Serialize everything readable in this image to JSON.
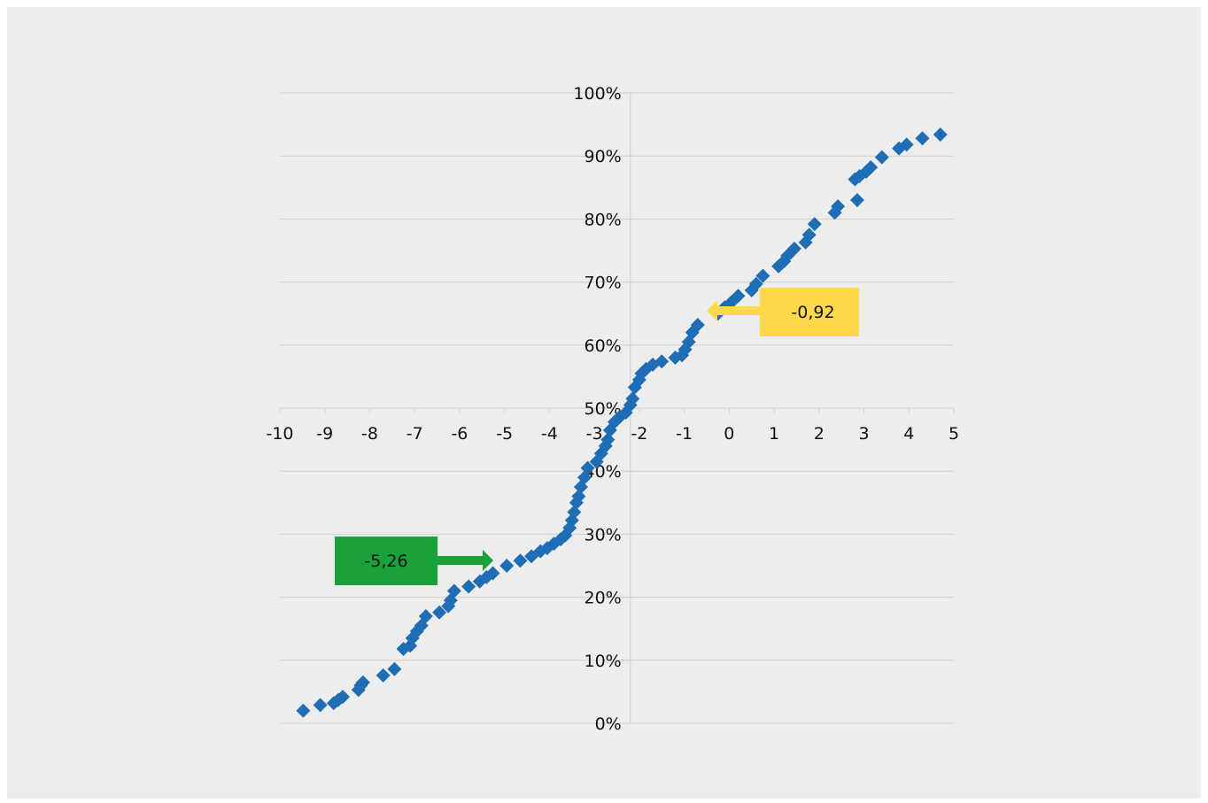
{
  "chart_data": {
    "type": "scatter",
    "title": "",
    "xlabel": "",
    "ylabel": "",
    "xlim": [
      -10,
      5
    ],
    "ylim": [
      0,
      100
    ],
    "x_ticks": [
      "-10",
      "-9",
      "-8",
      "-7",
      "-6",
      "-5",
      "-4",
      "-3",
      "-2",
      "-1",
      "0",
      "1",
      "2",
      "3",
      "4",
      "5"
    ],
    "y_ticks": [
      "0%",
      "10%",
      "20%",
      "30%",
      "40%",
      "50%",
      "60%",
      "70%",
      "80%",
      "90%",
      "100%"
    ],
    "grid": "horizontal",
    "marker": "diamond",
    "colors": {
      "marker": "#1f6db5",
      "panel": "#ededed",
      "grid": "#cfcfcf",
      "callout_green": "#1ba13a",
      "callout_yellow": "#ffd94a"
    },
    "points": [
      [
        -9.48,
        2
      ],
      [
        -9.1,
        2.9
      ],
      [
        -8.8,
        3.2
      ],
      [
        -8.7,
        3.7
      ],
      [
        -8.6,
        4.2
      ],
      [
        -8.25,
        5.3
      ],
      [
        -8.2,
        6
      ],
      [
        -8.15,
        6.5
      ],
      [
        -7.7,
        7.6
      ],
      [
        -7.45,
        8.6
      ],
      [
        -7.25,
        11.8
      ],
      [
        -7.1,
        12.3
      ],
      [
        -7.05,
        13.5
      ],
      [
        -6.95,
        14.6
      ],
      [
        -6.85,
        15.5
      ],
      [
        -6.75,
        17
      ],
      [
        -6.45,
        17.6
      ],
      [
        -6.25,
        18.6
      ],
      [
        -6.2,
        19.5
      ],
      [
        -6.12,
        21
      ],
      [
        -5.8,
        21.7
      ],
      [
        -5.55,
        22.5
      ],
      [
        -5.4,
        23.2
      ],
      [
        -5.26,
        23.8
      ],
      [
        -4.95,
        25
      ],
      [
        -4.65,
        25.8
      ],
      [
        -4.4,
        26.5
      ],
      [
        -4.2,
        27.3
      ],
      [
        -4.05,
        27.8
      ],
      [
        -3.9,
        28.5
      ],
      [
        -3.75,
        29.2
      ],
      [
        -3.65,
        29.8
      ],
      [
        -3.55,
        31
      ],
      [
        -3.5,
        32.2
      ],
      [
        -3.45,
        33.5
      ],
      [
        -3.4,
        35
      ],
      [
        -3.35,
        36
      ],
      [
        -3.3,
        37.5
      ],
      [
        -3.22,
        39
      ],
      [
        -3.15,
        40.5
      ],
      [
        -2.95,
        41.5
      ],
      [
        -2.85,
        42.8
      ],
      [
        -2.75,
        44
      ],
      [
        -2.7,
        45
      ],
      [
        -2.65,
        46.5
      ],
      [
        -2.55,
        47.8
      ],
      [
        -2.45,
        48.5
      ],
      [
        -2.3,
        49.3
      ],
      [
        -2.2,
        50.5
      ],
      [
        -2.15,
        51.5
      ],
      [
        -2.1,
        53.3
      ],
      [
        -2.0,
        54.5
      ],
      [
        -1.95,
        55.5
      ],
      [
        -1.85,
        56.2
      ],
      [
        -1.7,
        56.9
      ],
      [
        -1.5,
        57.4
      ],
      [
        -1.2,
        58
      ],
      [
        -1.05,
        58.4
      ],
      [
        -0.98,
        59.3
      ],
      [
        -0.9,
        60.5
      ],
      [
        -0.82,
        62
      ],
      [
        -0.7,
        63.2
      ],
      [
        -0.25,
        65
      ],
      [
        -0.1,
        66
      ],
      [
        0.05,
        66.8
      ],
      [
        0.2,
        67.8
      ],
      [
        0.5,
        68.7
      ],
      [
        0.6,
        69.7
      ],
      [
        0.75,
        71
      ],
      [
        1.1,
        72.5
      ],
      [
        1.22,
        73.3
      ],
      [
        1.3,
        74.2
      ],
      [
        1.45,
        75.3
      ],
      [
        1.7,
        76.3
      ],
      [
        1.78,
        77.5
      ],
      [
        1.9,
        79.2
      ],
      [
        2.35,
        81
      ],
      [
        2.42,
        82
      ],
      [
        2.85,
        83
      ],
      [
        2.8,
        86.3
      ],
      [
        2.9,
        86.8
      ],
      [
        3.05,
        87.5
      ],
      [
        3.15,
        88.2
      ],
      [
        3.4,
        89.8
      ],
      [
        3.78,
        91.2
      ],
      [
        3.95,
        91.8
      ],
      [
        4.3,
        92.8
      ],
      [
        4.7,
        93.4
      ]
    ],
    "annotations": [
      {
        "label": "-5,26",
        "x": -5.26,
        "direction": "right",
        "color": "#1ba13a"
      },
      {
        "label": "-0,92",
        "x": -0.92,
        "direction": "left",
        "color": "#ffd94a"
      }
    ]
  }
}
